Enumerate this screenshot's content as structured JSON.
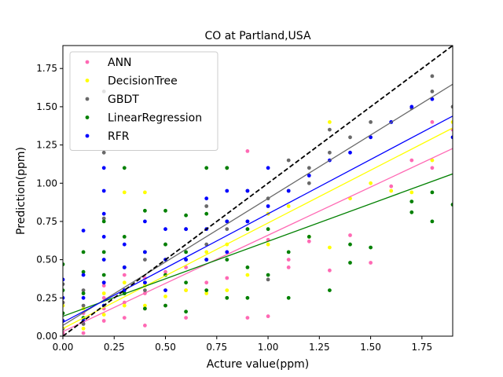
{
  "chart_data": {
    "type": "scatter",
    "title": "CO at Partland,USA",
    "xlabel": "Acture value(ppm)",
    "ylabel": "Prediction(ppm)",
    "xlim": [
      0,
      1.9
    ],
    "ylim": [
      0,
      1.9
    ],
    "xticks": [
      "0.00",
      "0.25",
      "0.50",
      "0.75",
      "1.00",
      "1.25",
      "1.50",
      "1.75"
    ],
    "yticks": [
      "0.00",
      "0.25",
      "0.50",
      "0.75",
      "1.00",
      "1.25",
      "1.50",
      "1.75"
    ],
    "grid": false,
    "legend_position": "top-left",
    "reference_line": {
      "style": "dashed",
      "color": "#000000",
      "from": [
        0,
        0
      ],
      "to": [
        1.9,
        1.9
      ]
    },
    "series": [
      {
        "name": "ANN",
        "color": "#ff69b4",
        "fit": {
          "intercept": 0.03,
          "slope": 0.63
        },
        "points": [
          [
            0,
            0.02
          ],
          [
            0,
            0.1
          ],
          [
            0,
            0.22
          ],
          [
            0.1,
            0.02
          ],
          [
            0.1,
            0.08
          ],
          [
            0.1,
            0.15
          ],
          [
            0.2,
            0.1
          ],
          [
            0.2,
            0.18
          ],
          [
            0.2,
            0.25
          ],
          [
            0.2,
            0.33
          ],
          [
            0.3,
            0.12
          ],
          [
            0.3,
            0.22
          ],
          [
            0.3,
            0.3
          ],
          [
            0.3,
            0.4
          ],
          [
            0.4,
            0.07
          ],
          [
            0.4,
            0.18
          ],
          [
            0.4,
            0.28
          ],
          [
            0.4,
            0.38
          ],
          [
            0.5,
            0.2
          ],
          [
            0.5,
            0.3
          ],
          [
            0.5,
            0.42
          ],
          [
            0.6,
            0.12
          ],
          [
            0.6,
            0.3
          ],
          [
            0.6,
            0.45
          ],
          [
            0.7,
            0.35
          ],
          [
            0.7,
            0.5
          ],
          [
            0.8,
            0.38
          ],
          [
            0.8,
            0.55
          ],
          [
            0.9,
            0.12
          ],
          [
            0.9,
            1.21
          ],
          [
            1.0,
            0.13
          ],
          [
            1.0,
            0.63
          ],
          [
            1.1,
            0.45
          ],
          [
            1.1,
            0.5
          ],
          [
            1.2,
            0.62
          ],
          [
            1.3,
            0.43
          ],
          [
            1.4,
            0.66
          ],
          [
            1.5,
            0.48
          ],
          [
            1.6,
            0.98
          ],
          [
            1.7,
            1.15
          ],
          [
            1.8,
            1.4
          ],
          [
            1.8,
            1.1
          ],
          [
            1.9,
            1.35
          ]
        ]
      },
      {
        "name": "DecisionTree",
        "color": "#ffff00",
        "fit": {
          "intercept": 0.05,
          "slope": 0.69
        },
        "points": [
          [
            0,
            0.05
          ],
          [
            0,
            0.2
          ],
          [
            0.1,
            0.05
          ],
          [
            0.1,
            0.18
          ],
          [
            0.2,
            0.14
          ],
          [
            0.2,
            0.28
          ],
          [
            0.2,
            0.5
          ],
          [
            0.3,
            0.94
          ],
          [
            0.3,
            0.35
          ],
          [
            0.3,
            0.2
          ],
          [
            0.4,
            0.94
          ],
          [
            0.4,
            0.33
          ],
          [
            0.4,
            0.2
          ],
          [
            0.5,
            0.4
          ],
          [
            0.5,
            0.26
          ],
          [
            0.6,
            0.3
          ],
          [
            0.6,
            0.5
          ],
          [
            0.7,
            0.28
          ],
          [
            0.7,
            0.55
          ],
          [
            0.8,
            0.3
          ],
          [
            0.8,
            0.6
          ],
          [
            0.9,
            0.4
          ],
          [
            0.9,
            0.7
          ],
          [
            1.0,
            0.6
          ],
          [
            1.0,
            0.8
          ],
          [
            1.1,
            0.85
          ],
          [
            1.2,
            0.65
          ],
          [
            1.3,
            1.4
          ],
          [
            1.3,
            0.58
          ],
          [
            1.4,
            0.9
          ],
          [
            1.5,
            1.0
          ],
          [
            1.6,
            0.95
          ],
          [
            1.7,
            0.94
          ],
          [
            1.8,
            1.15
          ],
          [
            1.9,
            1.4
          ]
        ]
      },
      {
        "name": "GBDT",
        "color": "#696969",
        "fit": {
          "intercept": 0.07,
          "slope": 0.83
        },
        "points": [
          [
            0,
            0.05
          ],
          [
            0,
            0.22
          ],
          [
            0,
            0.34
          ],
          [
            0.1,
            0.08
          ],
          [
            0.1,
            0.2
          ],
          [
            0.1,
            0.3
          ],
          [
            0.2,
            1.6
          ],
          [
            0.2,
            1.2
          ],
          [
            0.2,
            0.77
          ],
          [
            0.2,
            0.35
          ],
          [
            0.3,
            0.28
          ],
          [
            0.3,
            0.45
          ],
          [
            0.4,
            0.3
          ],
          [
            0.4,
            0.5
          ],
          [
            0.5,
            0.4
          ],
          [
            0.5,
            0.6
          ],
          [
            0.6,
            0.5
          ],
          [
            0.6,
            0.7
          ],
          [
            0.7,
            0.6
          ],
          [
            0.7,
            0.85
          ],
          [
            0.8,
            1.1
          ],
          [
            0.8,
            0.7
          ],
          [
            0.9,
            0.75
          ],
          [
            0.9,
            0.95
          ],
          [
            1.0,
            0.37
          ],
          [
            1.0,
            0.9
          ],
          [
            1.1,
            0.95
          ],
          [
            1.1,
            1.15
          ],
          [
            1.2,
            1.0
          ],
          [
            1.2,
            1.1
          ],
          [
            1.3,
            1.2
          ],
          [
            1.3,
            1.35
          ],
          [
            1.4,
            1.3
          ],
          [
            1.5,
            1.4
          ],
          [
            1.6,
            1.4
          ],
          [
            1.7,
            1.49
          ],
          [
            1.8,
            1.7
          ],
          [
            1.8,
            1.6
          ],
          [
            1.9,
            1.5
          ]
        ]
      },
      {
        "name": "LinearRegression",
        "color": "#008000",
        "fit": {
          "intercept": 0.13,
          "slope": 0.49
        },
        "points": [
          [
            0,
            0.47
          ],
          [
            0,
            0.3
          ],
          [
            0,
            0.15
          ],
          [
            0.1,
            0.55
          ],
          [
            0.1,
            0.42
          ],
          [
            0.1,
            0.28
          ],
          [
            0.1,
            0.12
          ],
          [
            0.2,
            0.75
          ],
          [
            0.2,
            0.55
          ],
          [
            0.2,
            0.4
          ],
          [
            0.2,
            0.2
          ],
          [
            0.3,
            1.1
          ],
          [
            0.3,
            0.65
          ],
          [
            0.3,
            0.45
          ],
          [
            0.3,
            0.28
          ],
          [
            0.4,
            0.82
          ],
          [
            0.4,
            0.55
          ],
          [
            0.4,
            0.35
          ],
          [
            0.4,
            0.18
          ],
          [
            0.5,
            0.82
          ],
          [
            0.5,
            0.6
          ],
          [
            0.5,
            0.4
          ],
          [
            0.5,
            0.2
          ],
          [
            0.6,
            0.79
          ],
          [
            0.6,
            0.55
          ],
          [
            0.6,
            0.35
          ],
          [
            0.6,
            0.16
          ],
          [
            0.7,
            1.1
          ],
          [
            0.7,
            0.8
          ],
          [
            0.7,
            0.5
          ],
          [
            0.7,
            0.3
          ],
          [
            0.8,
            1.1
          ],
          [
            0.8,
            0.75
          ],
          [
            0.8,
            0.5
          ],
          [
            0.8,
            0.25
          ],
          [
            0.9,
            0.7
          ],
          [
            0.9,
            0.45
          ],
          [
            0.9,
            0.25
          ],
          [
            1.0,
            0.7
          ],
          [
            1.0,
            0.4
          ],
          [
            1.1,
            0.25
          ],
          [
            1.1,
            0.55
          ],
          [
            1.2,
            0.65
          ],
          [
            1.3,
            0.3
          ],
          [
            1.4,
            0.48
          ],
          [
            1.4,
            0.6
          ],
          [
            1.5,
            0.58
          ],
          [
            1.7,
            0.81
          ],
          [
            1.7,
            0.88
          ],
          [
            1.8,
            0.75
          ],
          [
            1.8,
            0.94
          ],
          [
            1.9,
            0.86
          ]
        ]
      },
      {
        "name": "RFR",
        "color": "#0000ff",
        "fit": {
          "intercept": 0.09,
          "slope": 0.71
        },
        "points": [
          [
            0,
            0.37
          ],
          [
            0,
            0.25
          ],
          [
            0,
            0.1
          ],
          [
            0.1,
            0.69
          ],
          [
            0.1,
            0.4
          ],
          [
            0.1,
            0.25
          ],
          [
            0.1,
            0.1
          ],
          [
            0.2,
            1.1
          ],
          [
            0.2,
            0.95
          ],
          [
            0.2,
            0.8
          ],
          [
            0.2,
            0.65
          ],
          [
            0.2,
            0.5
          ],
          [
            0.2,
            0.35
          ],
          [
            0.2,
            0.2
          ],
          [
            0.3,
            0.6
          ],
          [
            0.3,
            0.45
          ],
          [
            0.3,
            0.3
          ],
          [
            0.4,
            0.75
          ],
          [
            0.4,
            0.55
          ],
          [
            0.4,
            0.35
          ],
          [
            0.5,
            0.7
          ],
          [
            0.5,
            0.5
          ],
          [
            0.5,
            0.3
          ],
          [
            0.6,
            0.7
          ],
          [
            0.6,
            0.5
          ],
          [
            0.7,
            0.9
          ],
          [
            0.7,
            0.7
          ],
          [
            0.7,
            0.5
          ],
          [
            0.8,
            0.95
          ],
          [
            0.8,
            0.75
          ],
          [
            0.8,
            0.55
          ],
          [
            0.9,
            0.95
          ],
          [
            0.9,
            0.75
          ],
          [
            1.0,
            1.1
          ],
          [
            1.0,
            0.85
          ],
          [
            1.1,
            0.95
          ],
          [
            1.2,
            1.05
          ],
          [
            1.3,
            1.15
          ],
          [
            1.4,
            1.2
          ],
          [
            1.5,
            1.3
          ],
          [
            1.6,
            1.4
          ],
          [
            1.7,
            1.5
          ],
          [
            1.8,
            1.55
          ],
          [
            1.9,
            1.3
          ]
        ]
      }
    ]
  }
}
